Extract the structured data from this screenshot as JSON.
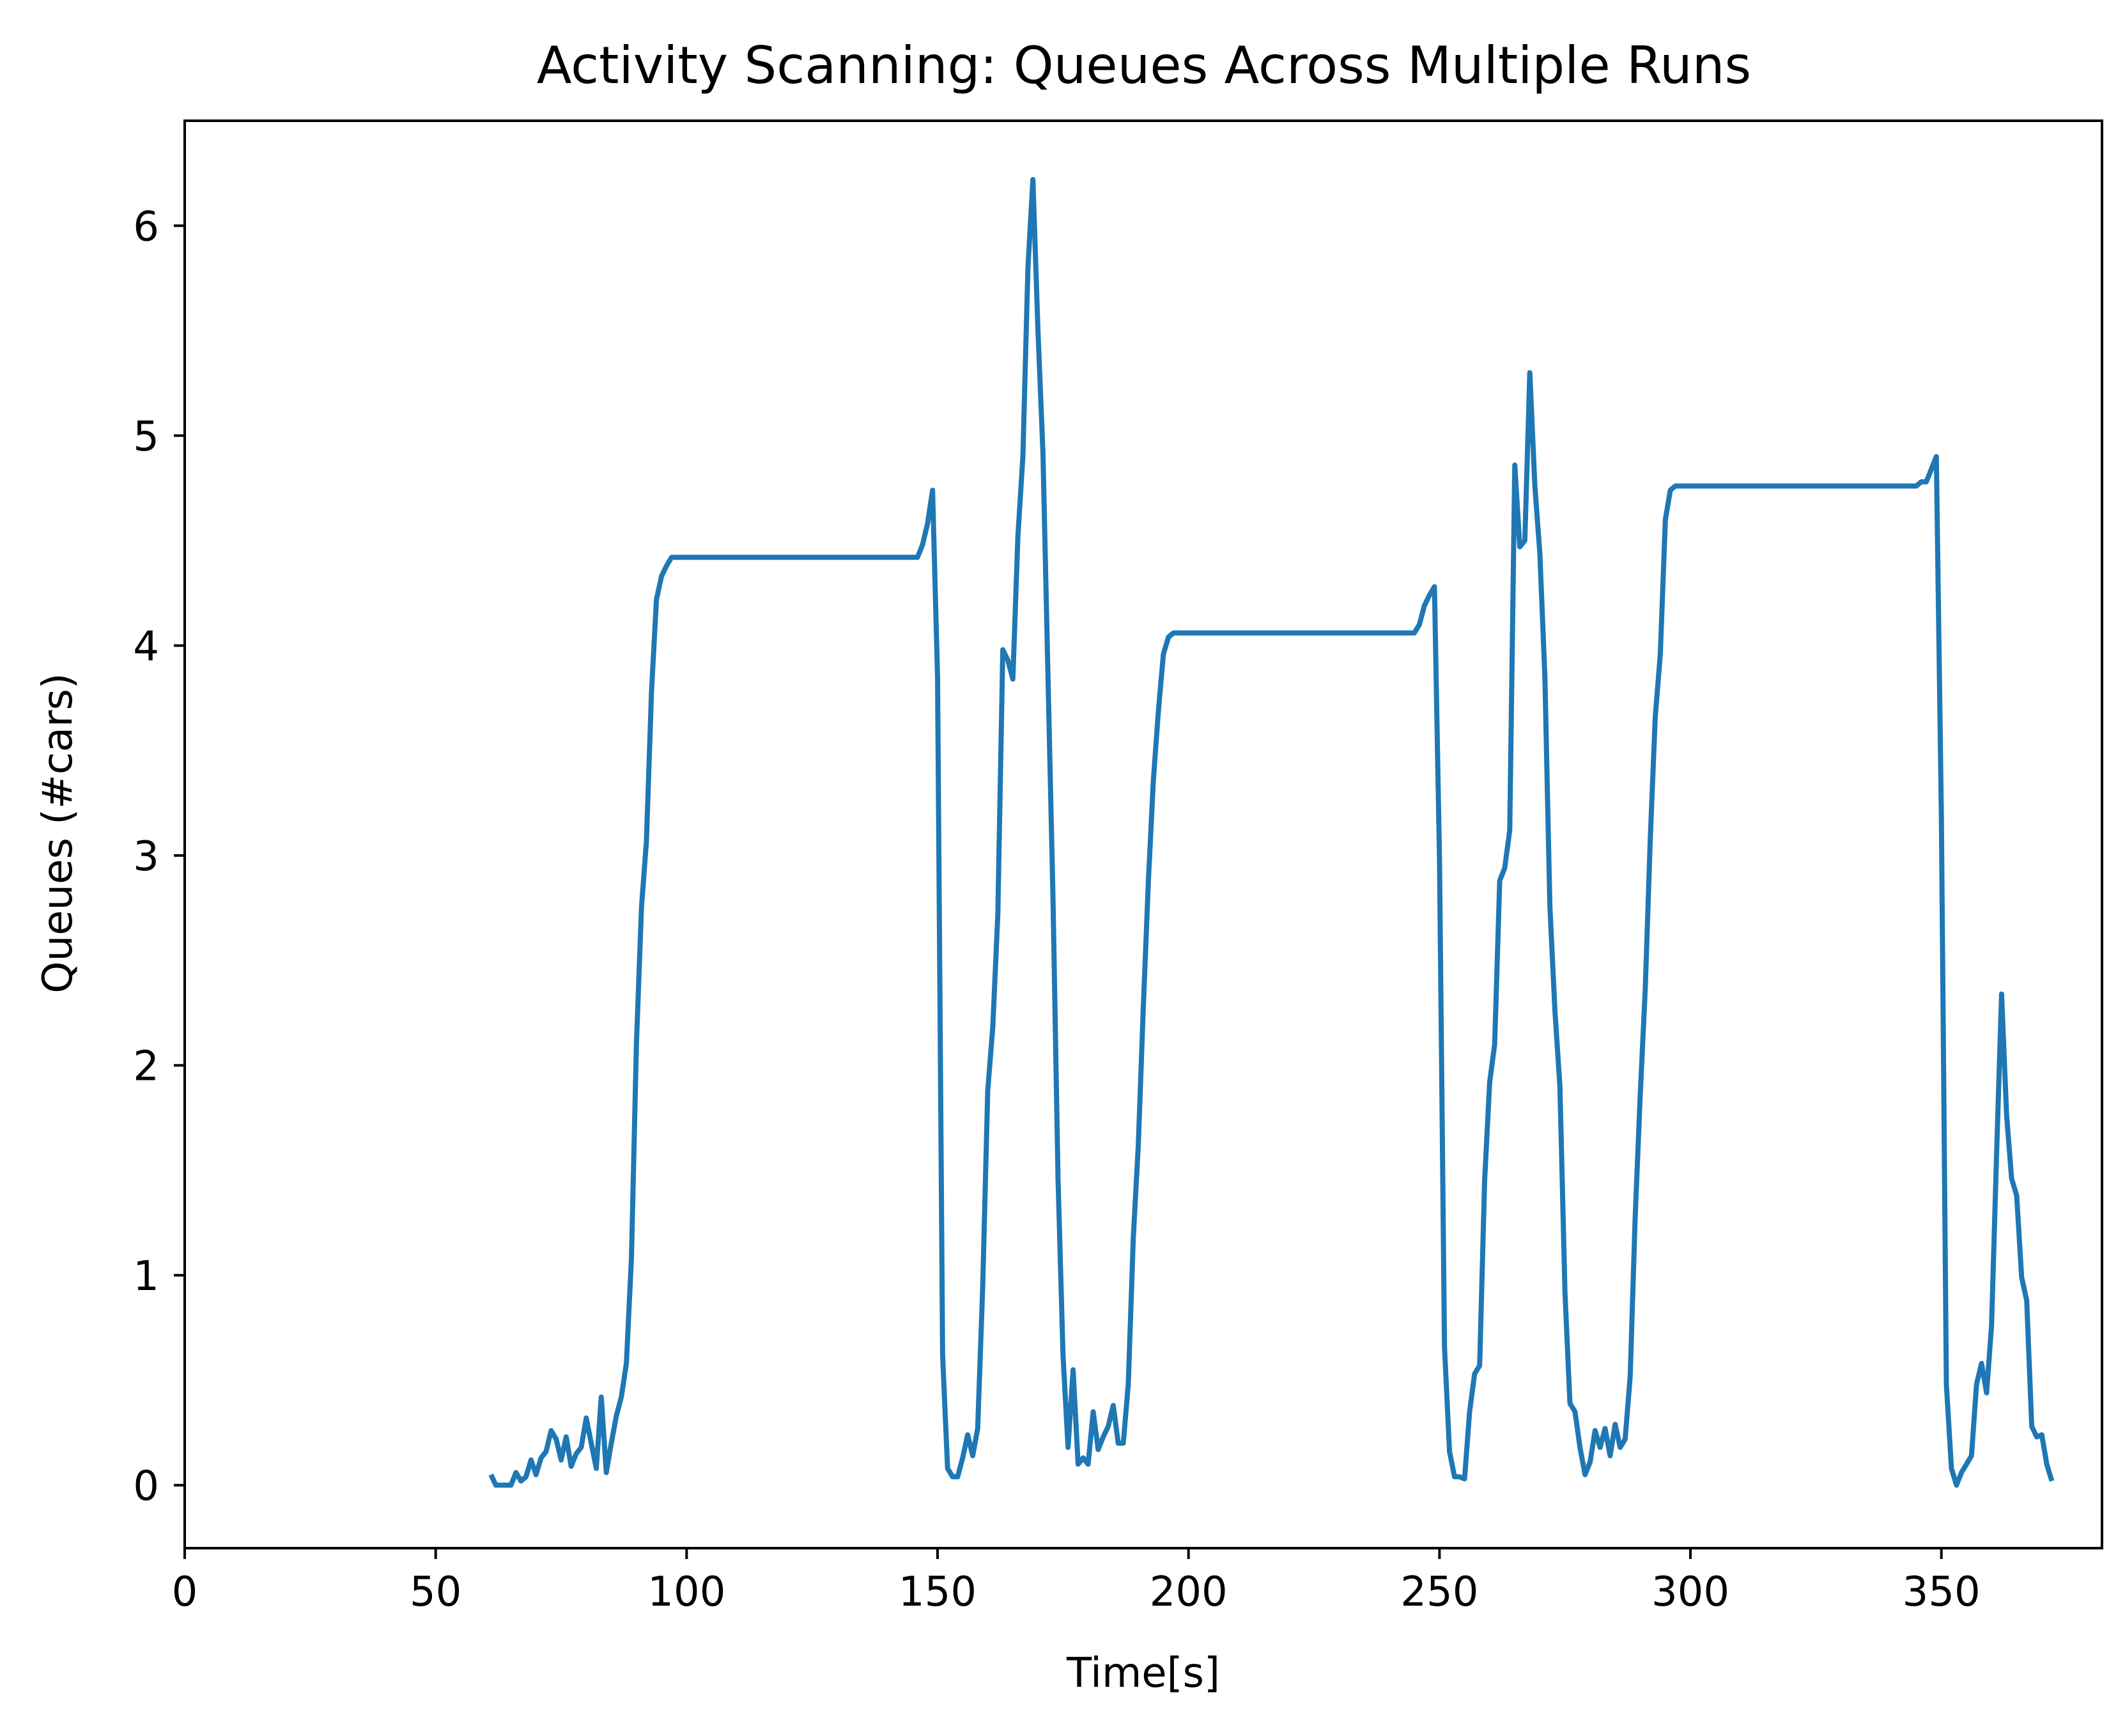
{
  "chart_data": {
    "type": "line",
    "title": "Activity Scanning: Queues Across Multiple Runs",
    "xlabel": "Time[s]",
    "ylabel": "Queues (#cars)",
    "xlim": [
      0,
      382
    ],
    "ylim": [
      -0.3,
      6.5
    ],
    "grid": false,
    "xticks": [
      0,
      50,
      100,
      150,
      200,
      250,
      300,
      350
    ],
    "yticks": [
      0,
      1,
      2,
      3,
      4,
      5,
      6
    ],
    "color": "#1f77b4",
    "series": [
      {
        "x": [
          61,
          62,
          63,
          64,
          65,
          66,
          67,
          68,
          69,
          70,
          71,
          72,
          73,
          74,
          75,
          76,
          77,
          78,
          79,
          80,
          81,
          82,
          83,
          84,
          85,
          86,
          87,
          88,
          89,
          90,
          91,
          92,
          93,
          94,
          95,
          96,
          97,
          100,
          110,
          120,
          130,
          140,
          146,
          147,
          148,
          149,
          150,
          151,
          152,
          153,
          154,
          155,
          156,
          157,
          158,
          159,
          160,
          161,
          162,
          163,
          164,
          165,
          166,
          167,
          168,
          169,
          170,
          171,
          172,
          173,
          174,
          175,
          176,
          177,
          178,
          179,
          180,
          181,
          182,
          183,
          184,
          185,
          186,
          187,
          188,
          189,
          190,
          191,
          192,
          193,
          194,
          195,
          196,
          197,
          200,
          210,
          220,
          230,
          240,
          245,
          246,
          247,
          248,
          249,
          250,
          251,
          252,
          253,
          254,
          255,
          256,
          257,
          258,
          259,
          260,
          261,
          262,
          263,
          264,
          265,
          266,
          267,
          268,
          269,
          270,
          271,
          272,
          273,
          274,
          275,
          276,
          277,
          278,
          279,
          280,
          281,
          282,
          283,
          284,
          285,
          286,
          287,
          288,
          289,
          290,
          291,
          292,
          293,
          294,
          295,
          296,
          297,
          300,
          310,
          320,
          330,
          340,
          345,
          346,
          347,
          348,
          349,
          350,
          351,
          352,
          353,
          354,
          355,
          356,
          357,
          358,
          359,
          360,
          361,
          362,
          363,
          364,
          365,
          366,
          367,
          368,
          369,
          370,
          371,
          372
        ],
        "y": [
          0.05,
          0.0,
          0.0,
          0.0,
          0.0,
          0.06,
          0.02,
          0.04,
          0.12,
          0.05,
          0.13,
          0.16,
          0.26,
          0.22,
          0.12,
          0.23,
          0.09,
          0.15,
          0.18,
          0.32,
          0.2,
          0.08,
          0.42,
          0.06,
          0.2,
          0.33,
          0.42,
          0.58,
          1.08,
          2.1,
          2.75,
          3.07,
          3.78,
          4.22,
          4.33,
          4.38,
          4.42,
          4.42,
          4.42,
          4.42,
          4.42,
          4.42,
          4.42,
          4.48,
          4.58,
          4.74,
          3.85,
          0.62,
          0.08,
          0.04,
          0.04,
          0.13,
          0.24,
          0.14,
          0.27,
          0.95,
          1.88,
          2.18,
          2.72,
          3.98,
          3.93,
          3.84,
          4.52,
          4.9,
          5.8,
          6.22,
          5.5,
          4.92,
          3.85,
          2.8,
          1.46,
          0.62,
          0.18,
          0.55,
          0.1,
          0.13,
          0.1,
          0.35,
          0.17,
          0.23,
          0.28,
          0.38,
          0.2,
          0.2,
          0.48,
          1.18,
          1.62,
          2.28,
          2.88,
          3.36,
          3.69,
          3.96,
          4.04,
          4.06,
          4.06,
          4.06,
          4.06,
          4.06,
          4.06,
          4.06,
          4.1,
          4.19,
          4.24,
          4.28,
          2.98,
          0.66,
          0.16,
          0.04,
          0.04,
          0.03,
          0.35,
          0.53,
          0.57,
          1.45,
          1.92,
          2.1,
          2.88,
          2.94,
          3.12,
          4.86,
          4.47,
          4.5,
          5.3,
          4.76,
          4.44,
          3.85,
          2.76,
          2.26,
          1.9,
          0.92,
          0.39,
          0.35,
          0.18,
          0.05,
          0.11,
          0.26,
          0.18,
          0.27,
          0.14,
          0.29,
          0.18,
          0.22,
          0.52,
          1.28,
          1.86,
          2.36,
          3.08,
          3.66,
          3.96,
          4.6,
          4.74,
          4.76,
          4.76,
          4.76,
          4.76,
          4.76,
          4.76,
          4.76,
          4.78,
          4.78,
          4.84,
          4.9,
          3.18,
          0.48,
          0.08,
          0.0,
          0.06,
          0.1,
          0.14,
          0.48,
          0.58,
          0.44,
          0.76,
          1.58,
          2.34,
          1.76,
          1.46,
          1.38,
          0.99,
          0.88,
          0.28,
          0.23,
          0.24,
          0.1,
          0.02
        ]
      }
    ]
  }
}
